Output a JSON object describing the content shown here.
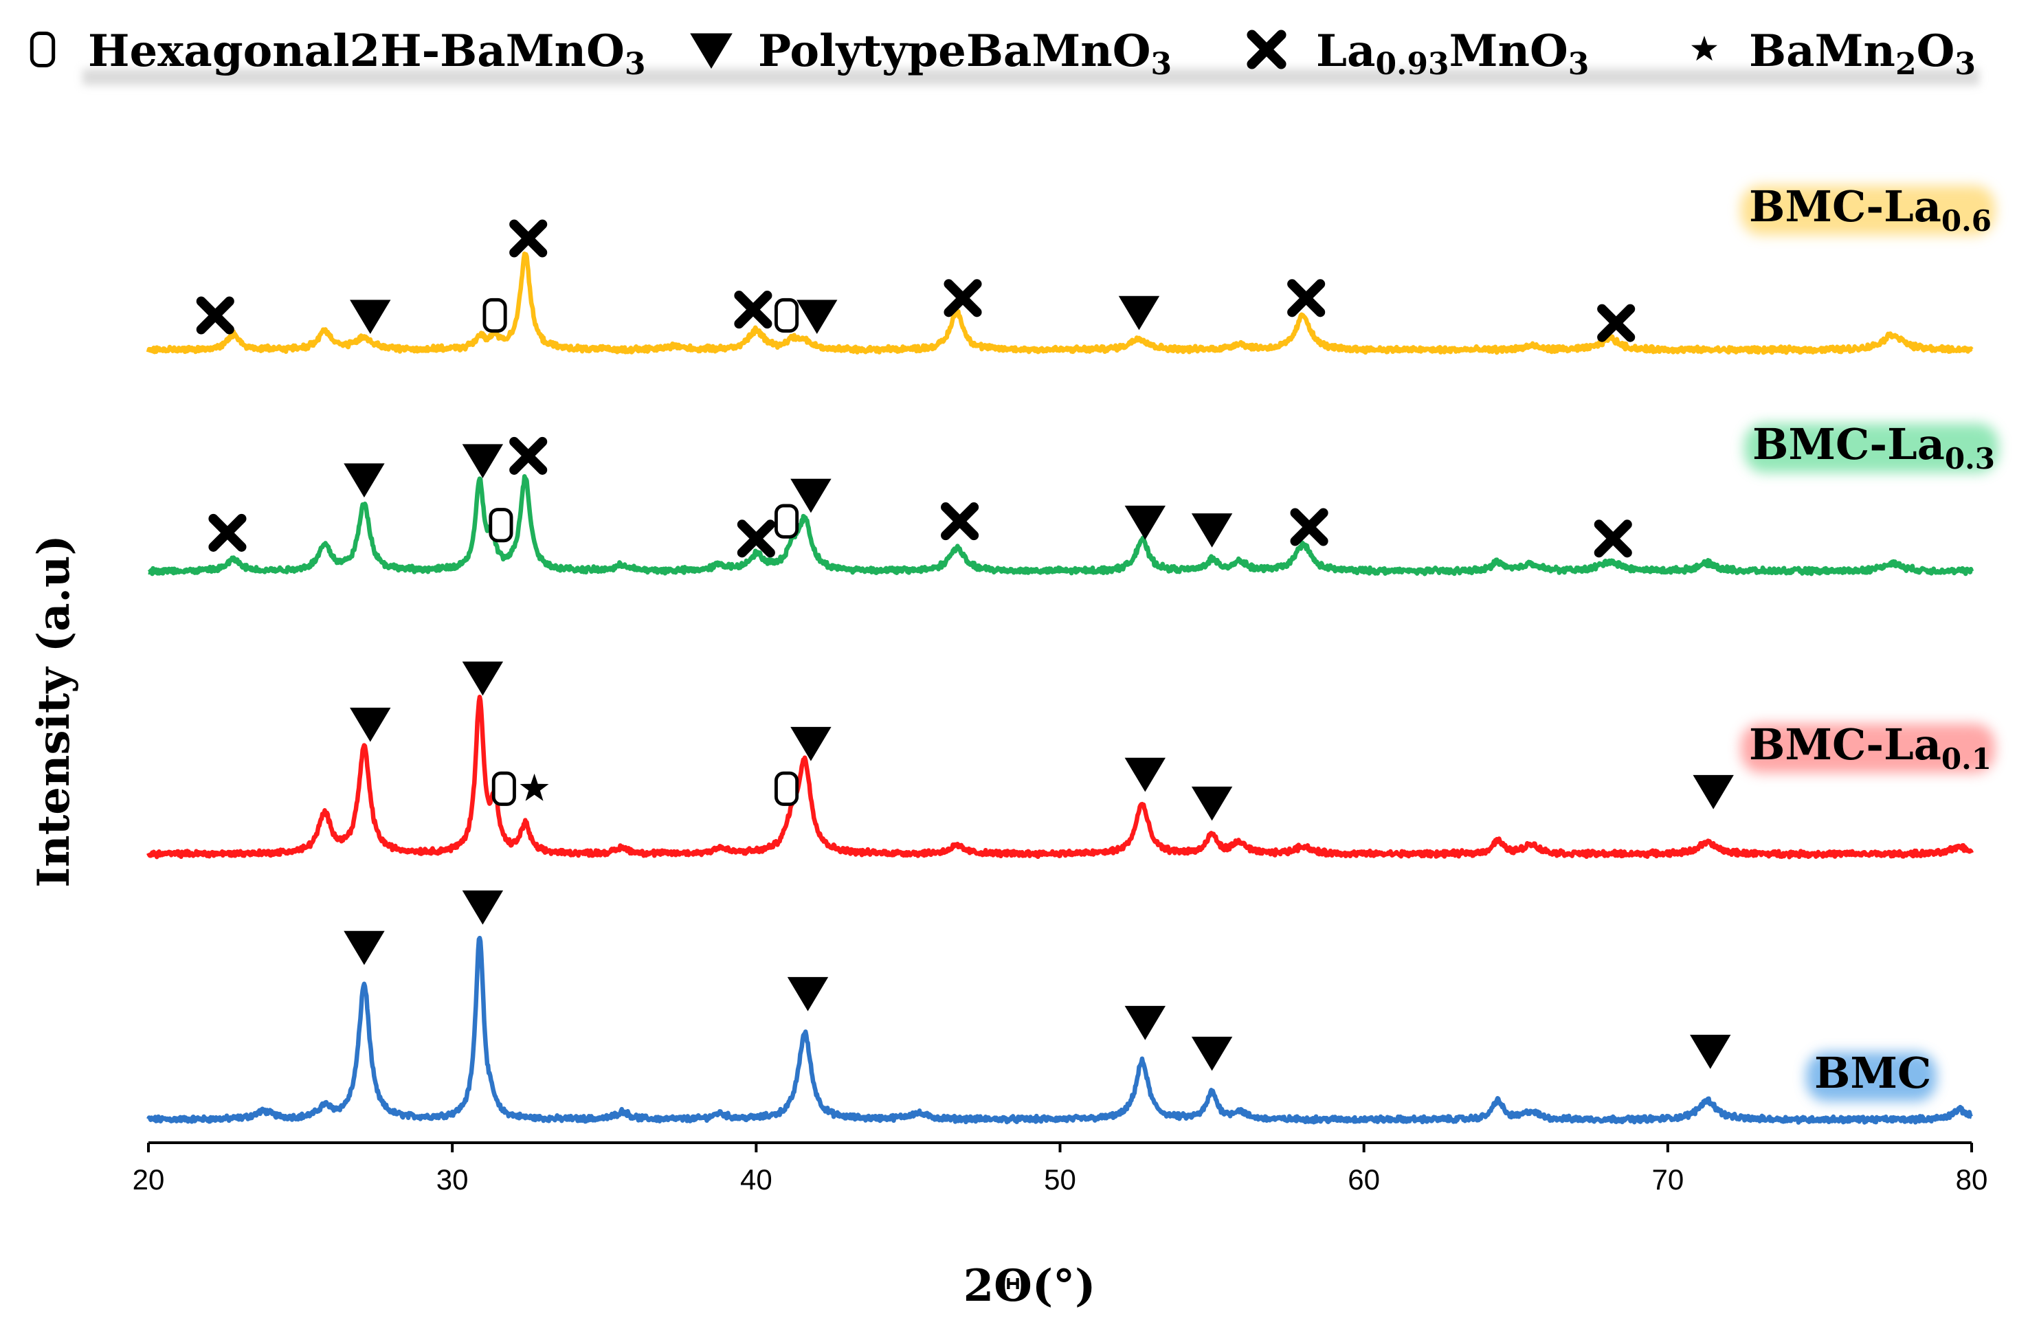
{
  "chart_data": {
    "type": "line",
    "xlabel": "2Θ(°)",
    "ylabel": "Intensity (a.u)",
    "xlim": [
      20,
      80
    ],
    "xticks": [
      "20",
      "30",
      "40",
      "50",
      "60",
      "70",
      "80"
    ],
    "grid": false,
    "legend": [
      {
        "marker": "open-rounded-rect",
        "text": "Hexagonal2H-BaMnO",
        "sub": "3",
        "after": ""
      },
      {
        "marker": "down-triangle",
        "text": "PolytypeBaMnO",
        "sub": "3",
        "after": ""
      },
      {
        "marker": "bold-x",
        "text": "La",
        "sub": "0.93",
        "after": "MnO",
        "sub2": "3"
      },
      {
        "marker": "star",
        "text": "BaMn",
        "sub": "2",
        "after": "O",
        "sub2": "3"
      }
    ],
    "series": [
      {
        "name": "BMC",
        "label_main": "BMC",
        "label_sub": "",
        "color": "#2e75c8",
        "glow": "#5aa5e8",
        "offset": 0.0,
        "baseline": 0.02,
        "peaks": [
          [
            23.8,
            0.04,
            0.35
          ],
          [
            25.8,
            0.06,
            0.25
          ],
          [
            27.1,
            0.7,
            0.22
          ],
          [
            30.9,
            0.95,
            0.16
          ],
          [
            31.3,
            0.05,
            0.15
          ],
          [
            35.6,
            0.04,
            0.25
          ],
          [
            38.8,
            0.03,
            0.25
          ],
          [
            41.6,
            0.45,
            0.25
          ],
          [
            45.3,
            0.03,
            0.4
          ],
          [
            52.7,
            0.3,
            0.25
          ],
          [
            55.0,
            0.14,
            0.2
          ],
          [
            55.9,
            0.04,
            0.25
          ],
          [
            64.4,
            0.1,
            0.2
          ],
          [
            65.5,
            0.04,
            0.3
          ],
          [
            71.3,
            0.1,
            0.35
          ],
          [
            79.6,
            0.05,
            0.3
          ]
        ],
        "markers": [
          {
            "type": "down-triangle",
            "x": 27.1,
            "y": 0.92
          },
          {
            "type": "down-triangle",
            "x": 31.0,
            "y": 1.13
          },
          {
            "type": "down-triangle",
            "x": 41.7,
            "y": 0.68
          },
          {
            "type": "down-triangle",
            "x": 52.8,
            "y": 0.53
          },
          {
            "type": "down-triangle",
            "x": 55.0,
            "y": 0.37
          },
          {
            "type": "down-triangle",
            "x": 71.4,
            "y": 0.38
          }
        ]
      },
      {
        "name": "BMC-La0.1",
        "label_main": "BMC-La",
        "label_sub": "0.1",
        "color": "#ff1a1a",
        "glow": "#ff8a8a",
        "offset": 1.38,
        "baseline": 0.02,
        "peaks": [
          [
            25.8,
            0.2,
            0.25
          ],
          [
            27.1,
            0.55,
            0.22
          ],
          [
            30.9,
            0.8,
            0.16
          ],
          [
            31.4,
            0.25,
            0.15
          ],
          [
            32.4,
            0.15,
            0.18
          ],
          [
            35.6,
            0.03,
            0.25
          ],
          [
            38.8,
            0.03,
            0.25
          ],
          [
            41.2,
            0.15,
            0.25
          ],
          [
            41.6,
            0.45,
            0.25
          ],
          [
            46.6,
            0.04,
            0.3
          ],
          [
            52.7,
            0.26,
            0.25
          ],
          [
            55.0,
            0.1,
            0.2
          ],
          [
            55.9,
            0.06,
            0.25
          ],
          [
            58.0,
            0.04,
            0.3
          ],
          [
            64.4,
            0.07,
            0.2
          ],
          [
            65.5,
            0.05,
            0.3
          ],
          [
            71.3,
            0.06,
            0.35
          ],
          [
            79.6,
            0.04,
            0.3
          ]
        ],
        "markers": [
          {
            "type": "down-triangle",
            "x": 27.3,
            "y": 0.7
          },
          {
            "type": "down-triangle",
            "x": 31.0,
            "y": 0.94
          },
          {
            "type": "open-rounded-rect",
            "x": 31.7,
            "y": 0.36
          },
          {
            "type": "star",
            "x": 32.7,
            "y": 0.36
          },
          {
            "type": "open-rounded-rect",
            "x": 41.0,
            "y": 0.36
          },
          {
            "type": "down-triangle",
            "x": 41.8,
            "y": 0.6
          },
          {
            "type": "down-triangle",
            "x": 52.8,
            "y": 0.44
          },
          {
            "type": "down-triangle",
            "x": 55.0,
            "y": 0.29
          },
          {
            "type": "down-triangle",
            "x": 71.5,
            "y": 0.35
          }
        ]
      },
      {
        "name": "BMC-La0.3",
        "label_main": "BMC-La",
        "label_sub": "0.3",
        "color": "#1fb05a",
        "glow": "#6fe0a0",
        "offset": 2.85,
        "baseline": 0.02,
        "peaks": [
          [
            22.8,
            0.06,
            0.25
          ],
          [
            25.8,
            0.13,
            0.25
          ],
          [
            27.1,
            0.35,
            0.22
          ],
          [
            30.9,
            0.45,
            0.16
          ],
          [
            31.3,
            0.15,
            0.15
          ],
          [
            32.4,
            0.48,
            0.2
          ],
          [
            35.6,
            0.03,
            0.25
          ],
          [
            38.8,
            0.03,
            0.25
          ],
          [
            40.0,
            0.08,
            0.3
          ],
          [
            41.2,
            0.1,
            0.25
          ],
          [
            41.6,
            0.25,
            0.25
          ],
          [
            46.6,
            0.12,
            0.3
          ],
          [
            52.7,
            0.16,
            0.25
          ],
          [
            55.0,
            0.06,
            0.2
          ],
          [
            55.9,
            0.05,
            0.25
          ],
          [
            58.0,
            0.14,
            0.3
          ],
          [
            64.4,
            0.05,
            0.2
          ],
          [
            65.5,
            0.04,
            0.3
          ],
          [
            68.1,
            0.05,
            0.4
          ],
          [
            71.3,
            0.04,
            0.35
          ],
          [
            77.4,
            0.04,
            0.4
          ]
        ],
        "markers": [
          {
            "type": "bold-x",
            "x": 22.6,
            "y": 0.22
          },
          {
            "type": "down-triangle",
            "x": 27.1,
            "y": 0.5
          },
          {
            "type": "down-triangle",
            "x": 31.0,
            "y": 0.6
          },
          {
            "type": "open-rounded-rect",
            "x": 31.6,
            "y": 0.26
          },
          {
            "type": "bold-x",
            "x": 32.5,
            "y": 0.62
          },
          {
            "type": "bold-x",
            "x": 40.0,
            "y": 0.19
          },
          {
            "type": "open-rounded-rect",
            "x": 41.0,
            "y": 0.28
          },
          {
            "type": "down-triangle",
            "x": 41.8,
            "y": 0.42
          },
          {
            "type": "bold-x",
            "x": 46.7,
            "y": 0.28
          },
          {
            "type": "down-triangle",
            "x": 52.8,
            "y": 0.28
          },
          {
            "type": "down-triangle",
            "x": 55.0,
            "y": 0.24
          },
          {
            "type": "bold-x",
            "x": 58.2,
            "y": 0.25
          },
          {
            "type": "bold-x",
            "x": 68.2,
            "y": 0.19
          }
        ]
      },
      {
        "name": "BMC-La0.6",
        "label_main": "BMC-La",
        "label_sub": "0.6",
        "color": "#ffbe14",
        "glow": "#ffd76a",
        "offset": 4.0,
        "baseline": 0.02,
        "peaks": [
          [
            22.8,
            0.08,
            0.25
          ],
          [
            25.8,
            0.1,
            0.25
          ],
          [
            27.1,
            0.06,
            0.35
          ],
          [
            30.9,
            0.06,
            0.2
          ],
          [
            31.4,
            0.06,
            0.2
          ],
          [
            32.4,
            0.5,
            0.2
          ],
          [
            37.3,
            0.02,
            0.3
          ],
          [
            40.0,
            0.1,
            0.3
          ],
          [
            41.2,
            0.05,
            0.25
          ],
          [
            41.6,
            0.04,
            0.25
          ],
          [
            46.6,
            0.2,
            0.25
          ],
          [
            52.6,
            0.06,
            0.35
          ],
          [
            55.9,
            0.03,
            0.3
          ],
          [
            58.0,
            0.18,
            0.28
          ],
          [
            65.5,
            0.02,
            0.3
          ],
          [
            68.1,
            0.06,
            0.35
          ],
          [
            77.4,
            0.08,
            0.4
          ]
        ],
        "markers": [
          {
            "type": "bold-x",
            "x": 22.2,
            "y": 0.2
          },
          {
            "type": "down-triangle",
            "x": 27.3,
            "y": 0.2
          },
          {
            "type": "open-rounded-rect",
            "x": 31.4,
            "y": 0.2
          },
          {
            "type": "bold-x",
            "x": 32.5,
            "y": 0.6
          },
          {
            "type": "bold-x",
            "x": 39.9,
            "y": 0.23
          },
          {
            "type": "open-rounded-rect",
            "x": 41.0,
            "y": 0.2
          },
          {
            "type": "down-triangle",
            "x": 42.0,
            "y": 0.2
          },
          {
            "type": "bold-x",
            "x": 46.8,
            "y": 0.29
          },
          {
            "type": "down-triangle",
            "x": 52.6,
            "y": 0.22
          },
          {
            "type": "bold-x",
            "x": 58.1,
            "y": 0.29
          },
          {
            "type": "bold-x",
            "x": 68.3,
            "y": 0.16
          }
        ]
      }
    ]
  }
}
